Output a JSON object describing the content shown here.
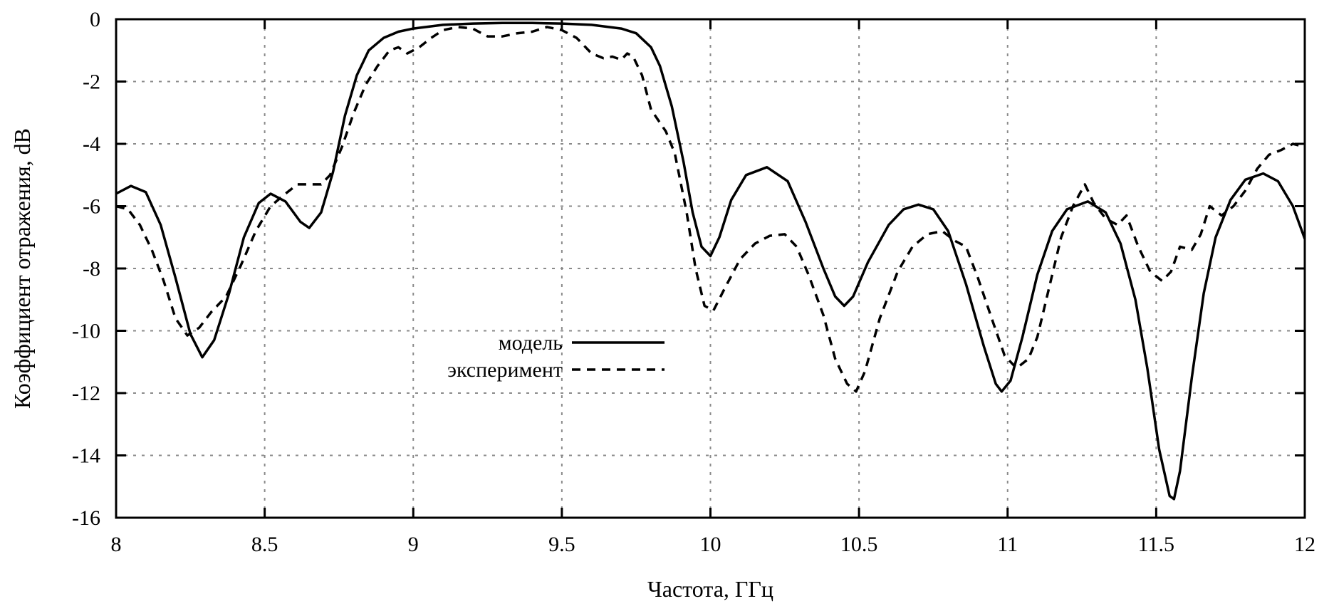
{
  "chart_data": {
    "type": "line",
    "title": "",
    "xlabel": "Частота, ГГц",
    "ylabel": "Коэффициент отражения, dB",
    "xlim": [
      8,
      12
    ],
    "ylim": [
      -16,
      0
    ],
    "xticks": [
      8,
      8.5,
      9,
      9.5,
      10,
      10.5,
      11,
      11.5,
      12
    ],
    "yticks": [
      0,
      -2,
      -4,
      -6,
      -8,
      -10,
      -12,
      -14,
      -16
    ],
    "xtick_labels": [
      "8",
      "8.5",
      "9",
      "9.5",
      "10",
      "10.5",
      "11",
      "11.5",
      "12"
    ],
    "ytick_labels": [
      "0",
      "-2",
      "-4",
      "-6",
      "-8",
      "-10",
      "-12",
      "-14",
      "-16"
    ],
    "grid": true,
    "legend_position": "center-left",
    "series": [
      {
        "name": "модель",
        "style": "solid",
        "color": "#000000",
        "points": [
          [
            8.0,
            -5.6
          ],
          [
            8.05,
            -5.35
          ],
          [
            8.1,
            -5.55
          ],
          [
            8.15,
            -6.6
          ],
          [
            8.2,
            -8.3
          ],
          [
            8.25,
            -10.1
          ],
          [
            8.29,
            -10.85
          ],
          [
            8.33,
            -10.3
          ],
          [
            8.38,
            -8.8
          ],
          [
            8.43,
            -7.0
          ],
          [
            8.48,
            -5.9
          ],
          [
            8.52,
            -5.6
          ],
          [
            8.57,
            -5.85
          ],
          [
            8.62,
            -6.5
          ],
          [
            8.65,
            -6.7
          ],
          [
            8.69,
            -6.2
          ],
          [
            8.73,
            -4.9
          ],
          [
            8.77,
            -3.1
          ],
          [
            8.81,
            -1.8
          ],
          [
            8.85,
            -1.0
          ],
          [
            8.9,
            -0.6
          ],
          [
            8.95,
            -0.4
          ],
          [
            9.0,
            -0.3
          ],
          [
            9.1,
            -0.18
          ],
          [
            9.2,
            -0.14
          ],
          [
            9.3,
            -0.12
          ],
          [
            9.4,
            -0.12
          ],
          [
            9.5,
            -0.14
          ],
          [
            9.6,
            -0.18
          ],
          [
            9.7,
            -0.3
          ],
          [
            9.75,
            -0.45
          ],
          [
            9.8,
            -0.9
          ],
          [
            9.83,
            -1.5
          ],
          [
            9.87,
            -2.8
          ],
          [
            9.91,
            -4.6
          ],
          [
            9.94,
            -6.2
          ],
          [
            9.97,
            -7.3
          ],
          [
            10.0,
            -7.6
          ],
          [
            10.03,
            -7.0
          ],
          [
            10.07,
            -5.8
          ],
          [
            10.12,
            -5.0
          ],
          [
            10.19,
            -4.75
          ],
          [
            10.26,
            -5.2
          ],
          [
            10.32,
            -6.5
          ],
          [
            10.38,
            -8.0
          ],
          [
            10.42,
            -8.9
          ],
          [
            10.45,
            -9.2
          ],
          [
            10.48,
            -8.9
          ],
          [
            10.53,
            -7.8
          ],
          [
            10.6,
            -6.6
          ],
          [
            10.65,
            -6.1
          ],
          [
            10.7,
            -5.95
          ],
          [
            10.75,
            -6.1
          ],
          [
            10.8,
            -6.8
          ],
          [
            10.86,
            -8.5
          ],
          [
            10.92,
            -10.5
          ],
          [
            10.96,
            -11.7
          ],
          [
            10.98,
            -11.95
          ],
          [
            11.01,
            -11.6
          ],
          [
            11.05,
            -10.2
          ],
          [
            11.1,
            -8.2
          ],
          [
            11.15,
            -6.8
          ],
          [
            11.2,
            -6.1
          ],
          [
            11.27,
            -5.85
          ],
          [
            11.33,
            -6.2
          ],
          [
            11.38,
            -7.2
          ],
          [
            11.43,
            -9.0
          ],
          [
            11.47,
            -11.2
          ],
          [
            11.51,
            -13.8
          ],
          [
            11.545,
            -15.3
          ],
          [
            11.56,
            -15.4
          ],
          [
            11.58,
            -14.5
          ],
          [
            11.62,
            -11.5
          ],
          [
            11.66,
            -8.8
          ],
          [
            11.7,
            -7.0
          ],
          [
            11.75,
            -5.8
          ],
          [
            11.8,
            -5.15
          ],
          [
            11.86,
            -4.95
          ],
          [
            11.91,
            -5.2
          ],
          [
            11.96,
            -6.0
          ],
          [
            12.0,
            -7.05
          ]
        ]
      },
      {
        "name": "эксперимент",
        "style": "dashed",
        "color": "#000000",
        "points": [
          [
            8.0,
            -6.0
          ],
          [
            8.04,
            -6.1
          ],
          [
            8.08,
            -6.6
          ],
          [
            8.12,
            -7.4
          ],
          [
            8.16,
            -8.4
          ],
          [
            8.2,
            -9.6
          ],
          [
            8.24,
            -10.15
          ],
          [
            8.28,
            -9.9
          ],
          [
            8.32,
            -9.4
          ],
          [
            8.37,
            -8.9
          ],
          [
            8.42,
            -7.9
          ],
          [
            8.47,
            -6.8
          ],
          [
            8.52,
            -6.0
          ],
          [
            8.57,
            -5.6
          ],
          [
            8.61,
            -5.3
          ],
          [
            8.65,
            -5.3
          ],
          [
            8.69,
            -5.3
          ],
          [
            8.72,
            -5.0
          ],
          [
            8.76,
            -4.1
          ],
          [
            8.8,
            -3.0
          ],
          [
            8.84,
            -2.1
          ],
          [
            8.88,
            -1.5
          ],
          [
            8.92,
            -1.0
          ],
          [
            8.95,
            -0.9
          ],
          [
            8.98,
            -1.1
          ],
          [
            9.02,
            -0.9
          ],
          [
            9.06,
            -0.6
          ],
          [
            9.1,
            -0.35
          ],
          [
            9.15,
            -0.25
          ],
          [
            9.2,
            -0.3
          ],
          [
            9.25,
            -0.55
          ],
          [
            9.3,
            -0.55
          ],
          [
            9.35,
            -0.45
          ],
          [
            9.4,
            -0.4
          ],
          [
            9.45,
            -0.25
          ],
          [
            9.5,
            -0.35
          ],
          [
            9.55,
            -0.6
          ],
          [
            9.6,
            -1.1
          ],
          [
            9.64,
            -1.25
          ],
          [
            9.67,
            -1.2
          ],
          [
            9.7,
            -1.3
          ],
          [
            9.72,
            -1.1
          ],
          [
            9.74,
            -1.2
          ],
          [
            9.77,
            -1.8
          ],
          [
            9.8,
            -2.9
          ],
          [
            9.85,
            -3.6
          ],
          [
            9.88,
            -4.3
          ],
          [
            9.92,
            -6.2
          ],
          [
            9.95,
            -8.0
          ],
          [
            9.98,
            -9.2
          ],
          [
            10.01,
            -9.35
          ],
          [
            10.05,
            -8.6
          ],
          [
            10.1,
            -7.7
          ],
          [
            10.15,
            -7.2
          ],
          [
            10.2,
            -6.95
          ],
          [
            10.25,
            -6.9
          ],
          [
            10.29,
            -7.3
          ],
          [
            10.33,
            -8.2
          ],
          [
            10.38,
            -9.5
          ],
          [
            10.42,
            -10.9
          ],
          [
            10.46,
            -11.7
          ],
          [
            10.49,
            -11.95
          ],
          [
            10.52,
            -11.3
          ],
          [
            10.57,
            -9.6
          ],
          [
            10.63,
            -8.1
          ],
          [
            10.68,
            -7.3
          ],
          [
            10.73,
            -6.9
          ],
          [
            10.78,
            -6.8
          ],
          [
            10.82,
            -7.1
          ],
          [
            10.86,
            -7.3
          ],
          [
            10.9,
            -8.3
          ],
          [
            10.95,
            -9.7
          ],
          [
            10.99,
            -10.8
          ],
          [
            11.03,
            -11.2
          ],
          [
            11.07,
            -10.9
          ],
          [
            11.1,
            -10.2
          ],
          [
            11.14,
            -8.6
          ],
          [
            11.18,
            -7.0
          ],
          [
            11.22,
            -6.0
          ],
          [
            11.26,
            -5.3
          ],
          [
            11.29,
            -5.9
          ],
          [
            11.33,
            -6.4
          ],
          [
            11.37,
            -6.6
          ],
          [
            11.4,
            -6.3
          ],
          [
            11.44,
            -7.3
          ],
          [
            11.48,
            -8.1
          ],
          [
            11.52,
            -8.4
          ],
          [
            11.55,
            -8.1
          ],
          [
            11.58,
            -7.3
          ],
          [
            11.62,
            -7.4
          ],
          [
            11.65,
            -6.9
          ],
          [
            11.68,
            -6.0
          ],
          [
            11.72,
            -6.3
          ],
          [
            11.76,
            -6.0
          ],
          [
            11.8,
            -5.5
          ],
          [
            11.84,
            -4.8
          ],
          [
            11.88,
            -4.35
          ],
          [
            11.92,
            -4.2
          ],
          [
            11.96,
            -4.0
          ],
          [
            12.0,
            -4.1
          ]
        ]
      }
    ]
  }
}
